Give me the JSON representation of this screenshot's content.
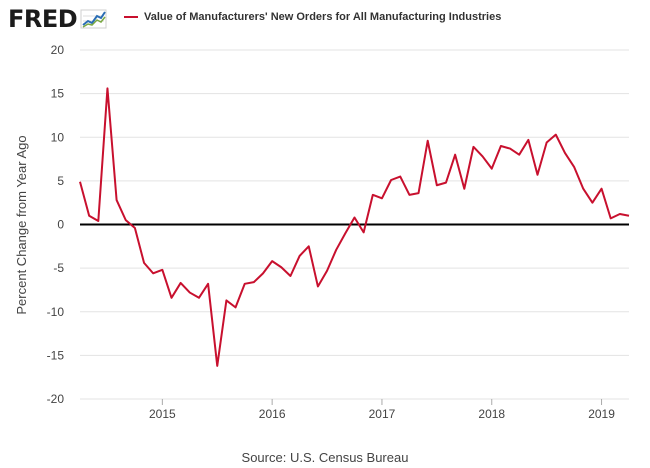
{
  "header": {
    "logo_text": "FRED",
    "logo_icon": "trend-line-icon"
  },
  "source": "Source: U.S. Census Bureau",
  "colors": {
    "series": "#c8102e",
    "zero_line": "#000000",
    "grid": "#e3e3e3",
    "text": "#444444"
  },
  "chart_data": {
    "type": "line",
    "title": "",
    "xlabel": "",
    "ylabel": "Percent Change from Year Ago",
    "ylim": [
      -20,
      20
    ],
    "yticks": [
      20,
      15,
      10,
      5,
      0,
      -5,
      -10,
      -15,
      -20
    ],
    "xlim": [
      "2014-04",
      "2019-04"
    ],
    "xticks": [
      "2015",
      "2016",
      "2017",
      "2018",
      "2019"
    ],
    "grid": "horizontal",
    "legend_position": "top",
    "series": [
      {
        "name": "Value of Manufacturers' New Orders for All Manufacturing Industries",
        "color": "#c8102e",
        "x": [
          "2014-04",
          "2014-05",
          "2014-06",
          "2014-07",
          "2014-08",
          "2014-09",
          "2014-10",
          "2014-11",
          "2014-12",
          "2015-01",
          "2015-02",
          "2015-03",
          "2015-04",
          "2015-05",
          "2015-06",
          "2015-07",
          "2015-08",
          "2015-09",
          "2015-10",
          "2015-11",
          "2015-12",
          "2016-01",
          "2016-02",
          "2016-03",
          "2016-04",
          "2016-05",
          "2016-06",
          "2016-07",
          "2016-08",
          "2016-09",
          "2016-10",
          "2016-11",
          "2016-12",
          "2017-01",
          "2017-02",
          "2017-03",
          "2017-04",
          "2017-05",
          "2017-06",
          "2017-07",
          "2017-08",
          "2017-09",
          "2017-10",
          "2017-11",
          "2017-12",
          "2018-01",
          "2018-02",
          "2018-03",
          "2018-04",
          "2018-05",
          "2018-06",
          "2018-07",
          "2018-08",
          "2018-09",
          "2018-10",
          "2018-11",
          "2018-12",
          "2019-01",
          "2019-02",
          "2019-03",
          "2019-04"
        ],
        "values": [
          4.9,
          1.0,
          0.4,
          15.6,
          2.8,
          0.5,
          -0.4,
          -4.4,
          -5.6,
          -5.2,
          -8.4,
          -6.7,
          -7.8,
          -8.4,
          -6.8,
          -16.2,
          -8.7,
          -9.5,
          -6.8,
          -6.6,
          -5.6,
          -4.2,
          -4.9,
          -5.9,
          -3.6,
          -2.5,
          -7.1,
          -5.3,
          -2.9,
          -1.0,
          0.8,
          -0.9,
          3.4,
          3.0,
          5.1,
          5.5,
          3.4,
          3.6,
          9.6,
          4.5,
          4.8,
          8.0,
          4.1,
          8.9,
          7.8,
          6.4,
          9.0,
          8.7,
          8.0,
          9.7,
          5.7,
          9.4,
          10.3,
          8.2,
          6.6,
          4.1,
          2.5,
          4.1,
          0.7,
          1.2,
          1.0
        ]
      }
    ]
  }
}
